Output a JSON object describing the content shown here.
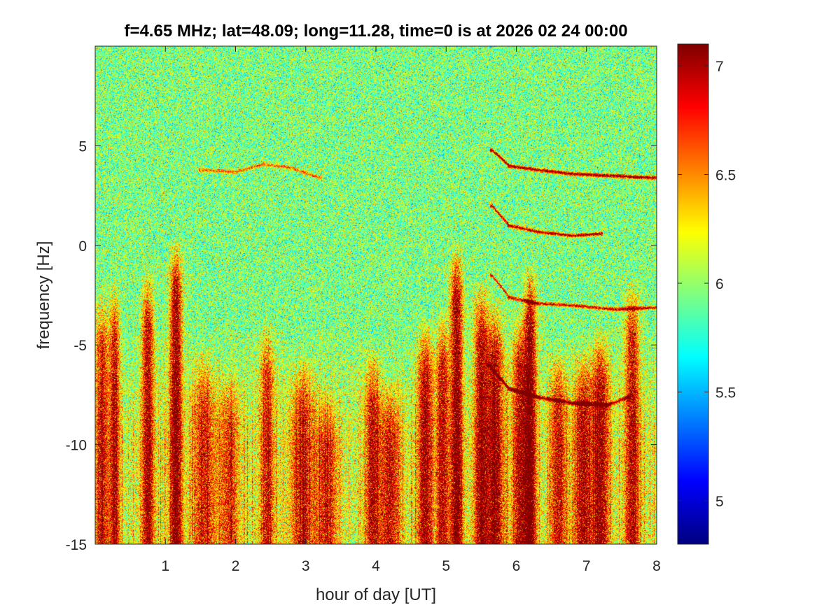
{
  "chart_data": {
    "type": "heatmap",
    "title": "f=4.65 MHz;  lat=48.09; long=11.28, time=0 is at 2026 02 24 00:00",
    "xlabel": "hour of day [UT]",
    "ylabel": "frequency [Hz]",
    "xlim": [
      0,
      8
    ],
    "ylim": [
      -15,
      10
    ],
    "xticks": [
      1,
      2,
      3,
      4,
      5,
      6,
      7,
      8
    ],
    "yticks": [
      -15,
      -10,
      -5,
      0,
      5
    ],
    "colormap": "jet",
    "clim": [
      4.8,
      7.1
    ],
    "cticks": [
      5,
      5.5,
      6,
      6.5,
      7
    ],
    "background_level": 5.95,
    "features": {
      "spread_bursts": [
        {
          "hour": 0.1,
          "freq_top": -2.0,
          "width": 0.12,
          "strength": 0.8
        },
        {
          "hour": 0.28,
          "freq_top": -1.6,
          "width": 0.08,
          "strength": 0.9
        },
        {
          "hour": 0.75,
          "freq_top": -1.0,
          "width": 0.1,
          "strength": 1.0
        },
        {
          "hour": 1.15,
          "freq_top": 0.5,
          "width": 0.1,
          "strength": 1.2
        },
        {
          "hour": 1.55,
          "freq_top": -5.0,
          "width": 0.18,
          "strength": 0.7
        },
        {
          "hour": 1.9,
          "freq_top": -6.0,
          "width": 0.18,
          "strength": 0.6
        },
        {
          "hour": 2.45,
          "freq_top": -3.5,
          "width": 0.12,
          "strength": 0.7
        },
        {
          "hour": 2.95,
          "freq_top": -5.5,
          "width": 0.2,
          "strength": 0.7
        },
        {
          "hour": 3.3,
          "freq_top": -7.0,
          "width": 0.18,
          "strength": 0.7
        },
        {
          "hour": 3.95,
          "freq_top": -5.0,
          "width": 0.12,
          "strength": 0.8
        },
        {
          "hour": 4.2,
          "freq_top": -6.5,
          "width": 0.18,
          "strength": 0.8
        },
        {
          "hour": 4.7,
          "freq_top": -3.5,
          "width": 0.12,
          "strength": 1.0
        },
        {
          "hour": 4.95,
          "freq_top": -3.0,
          "width": 0.1,
          "strength": 0.9
        },
        {
          "hour": 5.15,
          "freq_top": 0.3,
          "width": 0.1,
          "strength": 1.2
        },
        {
          "hour": 5.5,
          "freq_top": -1.5,
          "width": 0.12,
          "strength": 1.0
        },
        {
          "hour": 5.7,
          "freq_top": -2.5,
          "width": 0.14,
          "strength": 1.0
        },
        {
          "hour": 6.05,
          "freq_top": -3.0,
          "width": 0.12,
          "strength": 0.9
        },
        {
          "hour": 6.2,
          "freq_top": -0.8,
          "width": 0.1,
          "strength": 1.2
        },
        {
          "hour": 6.6,
          "freq_top": -5.0,
          "width": 0.14,
          "strength": 0.8
        },
        {
          "hour": 6.95,
          "freq_top": -5.0,
          "width": 0.14,
          "strength": 0.9
        },
        {
          "hour": 7.2,
          "freq_top": -4.0,
          "width": 0.14,
          "strength": 1.0
        },
        {
          "hour": 7.65,
          "freq_top": -1.5,
          "width": 0.12,
          "strength": 0.9
        }
      ],
      "traces": [
        {
          "points": [
            [
              1.5,
              3.8
            ],
            [
              2.0,
              3.7
            ],
            [
              2.4,
              4.1
            ],
            [
              2.8,
              3.9
            ],
            [
              3.2,
              3.4
            ]
          ],
          "strength": 0.6
        },
        {
          "points": [
            [
              5.65,
              4.8
            ],
            [
              5.9,
              4.0
            ],
            [
              6.3,
              3.8
            ],
            [
              6.8,
              3.6
            ],
            [
              7.4,
              3.5
            ],
            [
              8.0,
              3.4
            ]
          ],
          "strength": 1.1
        },
        {
          "points": [
            [
              5.65,
              2.0
            ],
            [
              5.9,
              1.0
            ],
            [
              6.3,
              0.7
            ],
            [
              6.8,
              0.5
            ],
            [
              7.2,
              0.6
            ]
          ],
          "strength": 1.0
        },
        {
          "points": [
            [
              5.65,
              -1.5
            ],
            [
              5.9,
              -2.6
            ],
            [
              6.3,
              -2.9
            ],
            [
              6.8,
              -3.0
            ],
            [
              7.4,
              -3.2
            ],
            [
              8.0,
              -3.1
            ]
          ],
          "strength": 0.9
        },
        {
          "points": [
            [
              5.6,
              -6.0
            ],
            [
              5.9,
              -7.2
            ],
            [
              6.3,
              -7.6
            ],
            [
              6.8,
              -7.9
            ],
            [
              7.3,
              -8.0
            ],
            [
              7.6,
              -7.6
            ]
          ],
          "strength": 0.9
        }
      ]
    }
  }
}
